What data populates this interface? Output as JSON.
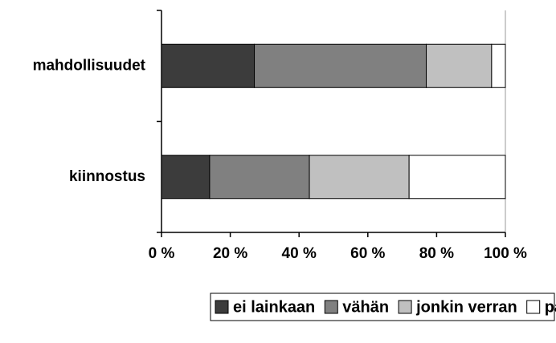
{
  "chart_data": {
    "type": "stacked-barh",
    "categories": [
      "mahdollisuudet",
      "kiinnostus"
    ],
    "series": [
      {
        "name": "ei lainkaan",
        "color": "#3c3c3c",
        "values": [
          27,
          14
        ]
      },
      {
        "name": "vähän",
        "color": "#808080",
        "values": [
          50,
          29
        ]
      },
      {
        "name": "jonkin verran",
        "color": "#c0c0c0",
        "values": [
          19,
          29
        ]
      },
      {
        "name": "paljon",
        "color": "#ffffff",
        "values": [
          4,
          28
        ]
      }
    ],
    "xlim": [
      0,
      100
    ],
    "xticks": [
      {
        "value": 0,
        "label": "0 %"
      },
      {
        "value": 20,
        "label": "20 %"
      },
      {
        "value": 40,
        "label": "40 %"
      },
      {
        "value": 60,
        "label": "60 %"
      },
      {
        "value": 80,
        "label": "80 %"
      },
      {
        "value": 100,
        "label": "100 %"
      }
    ],
    "legend": "bottom"
  }
}
